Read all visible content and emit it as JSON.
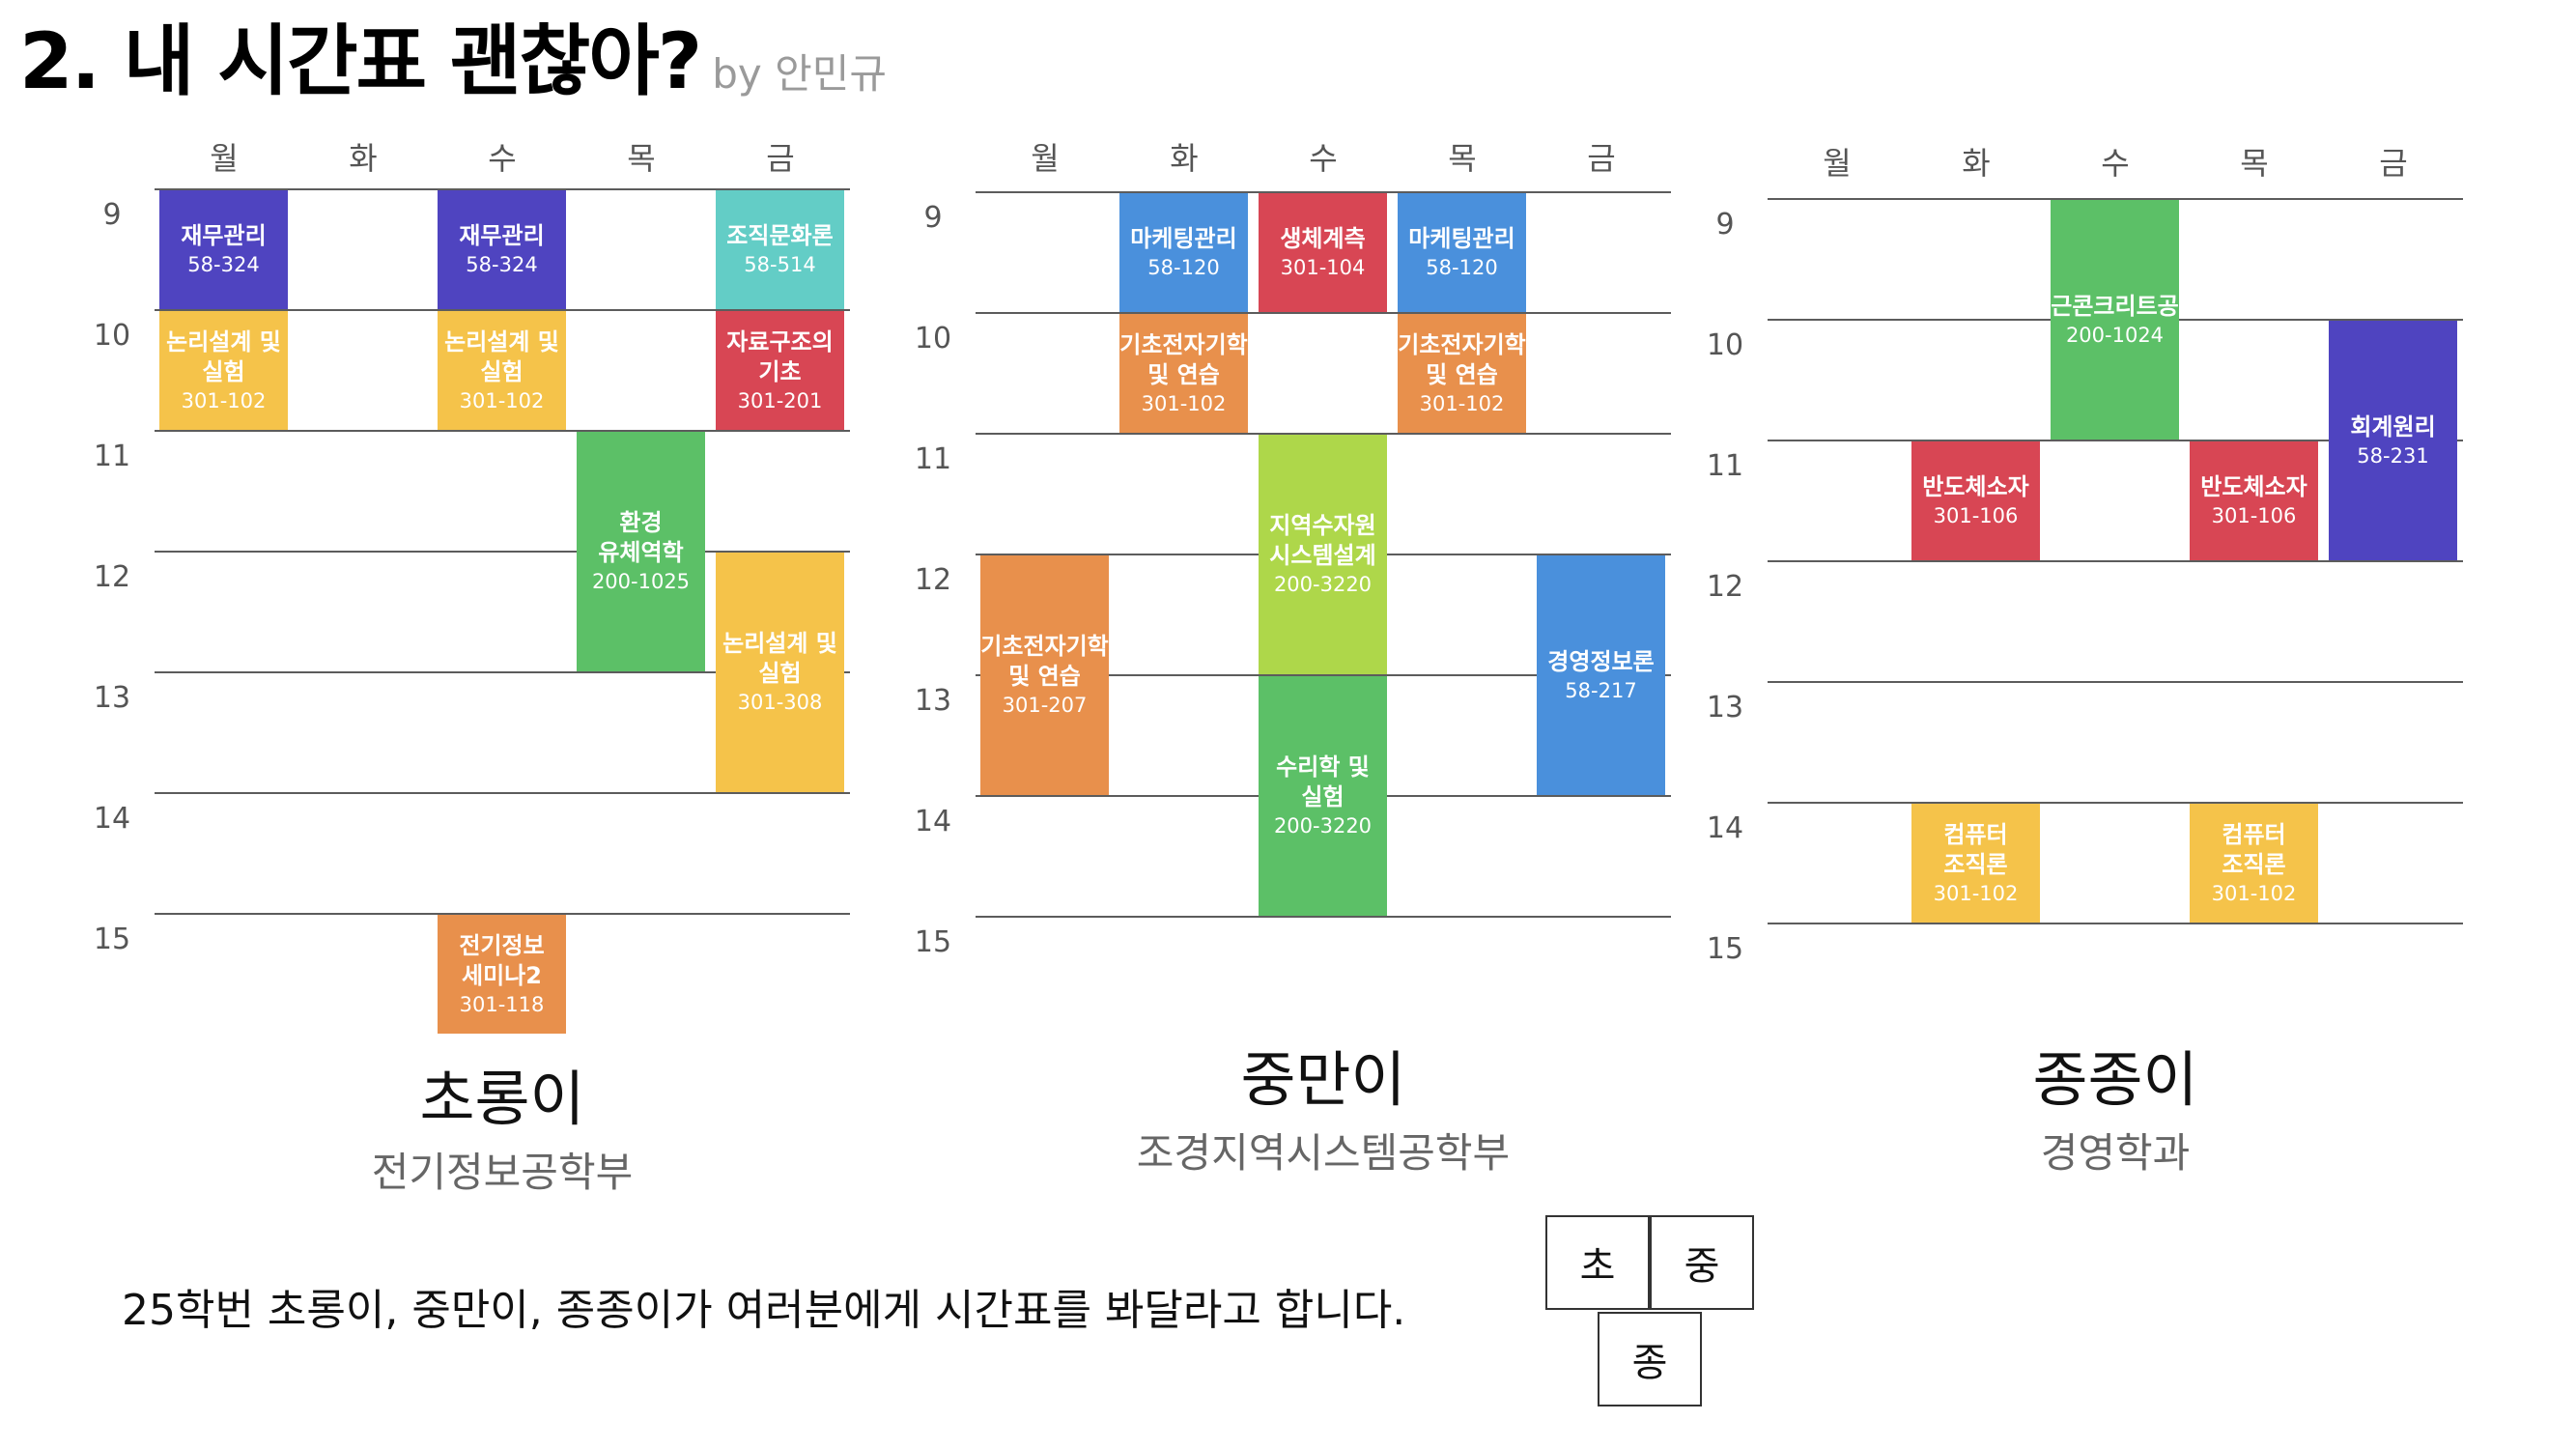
{
  "header": {
    "title": "2. 내 시간표 괜찮아?",
    "byline": "by 안민규"
  },
  "days": [
    "월",
    "화",
    "수",
    "목",
    "금"
  ],
  "hours": [
    "9",
    "10",
    "11",
    "12",
    "13",
    "14",
    "15"
  ],
  "timetables": [
    {
      "name": "초롱이",
      "dept": "전기정보공학부",
      "courses": [
        {
          "name": "재무관리",
          "room": "58-324",
          "day": 0,
          "start": 9,
          "end": 10,
          "color": "#4f44c0"
        },
        {
          "name": "재무관리",
          "room": "58-324",
          "day": 2,
          "start": 9,
          "end": 10,
          "color": "#4f44c0"
        },
        {
          "name": "조직문화론",
          "room": "58-514",
          "day": 4,
          "start": 9,
          "end": 10,
          "color": "#63cdc6"
        },
        {
          "name": "논리설계 및 실험",
          "room": "301-102",
          "day": 0,
          "start": 10,
          "end": 11,
          "color": "#f5c34a"
        },
        {
          "name": "논리설계 및 실험",
          "room": "301-102",
          "day": 2,
          "start": 10,
          "end": 11,
          "color": "#f5c34a"
        },
        {
          "name": "자료구조의 기초",
          "room": "301-201",
          "day": 4,
          "start": 10,
          "end": 11,
          "color": "#d84654"
        },
        {
          "name": "환경 유체역학",
          "room": "200-1025",
          "day": 3,
          "start": 11,
          "end": 13,
          "color": "#5cc067"
        },
        {
          "name": "논리설계 및 실험",
          "room": "301-308",
          "day": 4,
          "start": 12,
          "end": 14,
          "color": "#f5c34a"
        },
        {
          "name": "전기정보 세미나2",
          "room": "301-118",
          "day": 2,
          "start": 15,
          "end": 16,
          "color": "#e8904c"
        }
      ]
    },
    {
      "name": "중만이",
      "dept": "조경지역시스템공학부",
      "courses": [
        {
          "name": "마케팅관리",
          "room": "58-120",
          "day": 1,
          "start": 9,
          "end": 10,
          "color": "#4a90dc"
        },
        {
          "name": "생체계측",
          "room": "301-104",
          "day": 2,
          "start": 9,
          "end": 10,
          "color": "#d84654"
        },
        {
          "name": "마케팅관리",
          "room": "58-120",
          "day": 3,
          "start": 9,
          "end": 10,
          "color": "#4a90dc"
        },
        {
          "name": "기초전자기학 및 연습",
          "room": "301-102",
          "day": 1,
          "start": 10,
          "end": 11,
          "color": "#e8904c"
        },
        {
          "name": "기초전자기학 및 연습",
          "room": "301-102",
          "day": 3,
          "start": 10,
          "end": 11,
          "color": "#e8904c"
        },
        {
          "name": "지역수자원 시스템설계",
          "room": "200-3220",
          "day": 2,
          "start": 11,
          "end": 13,
          "color": "#aed74a"
        },
        {
          "name": "기초전자기학 및 연습",
          "room": "301-207",
          "day": 0,
          "start": 12,
          "end": 14,
          "color": "#e8904c"
        },
        {
          "name": "경영정보론",
          "room": "58-217",
          "day": 4,
          "start": 12,
          "end": 14,
          "color": "#4a90dc"
        },
        {
          "name": "수리학 및 실험",
          "room": "200-3220",
          "day": 2,
          "start": 13,
          "end": 15,
          "color": "#5cc067"
        }
      ]
    },
    {
      "name": "종종이",
      "dept": "경영학과",
      "courses": [
        {
          "name": "철근콘크리트공학",
          "room": "200-1024",
          "day": 2,
          "start": 9,
          "end": 11,
          "color": "#5cc067"
        },
        {
          "name": "회계원리",
          "room": "58-231",
          "day": 4,
          "start": 10,
          "end": 12,
          "color": "#4f44c0"
        },
        {
          "name": "반도체소자",
          "room": "301-106",
          "day": 1,
          "start": 11,
          "end": 12,
          "color": "#d84654"
        },
        {
          "name": "반도체소자",
          "room": "301-106",
          "day": 3,
          "start": 11,
          "end": 12,
          "color": "#d84654"
        },
        {
          "name": "컴퓨터 조직론",
          "room": "301-102",
          "day": 1,
          "start": 14,
          "end": 15,
          "color": "#f5c34a"
        },
        {
          "name": "컴퓨터 조직론",
          "room": "301-102",
          "day": 3,
          "start": 14,
          "end": 15,
          "color": "#f5c34a"
        }
      ]
    }
  ],
  "caption": "25학번 초롱이, 중만이, 종종이가 여러분에게 시간표를 봐달라고 합니다.",
  "chips": [
    "초",
    "중",
    "종"
  ]
}
